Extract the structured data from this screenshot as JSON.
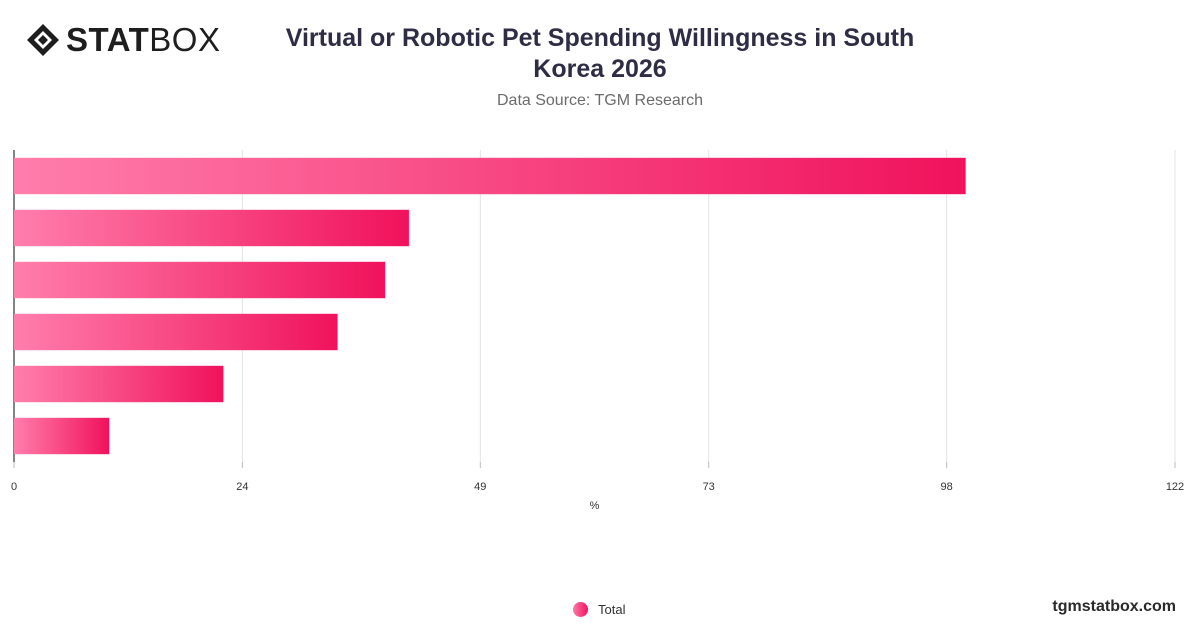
{
  "brand": {
    "logo_bold": "STAT",
    "logo_regular": "BOX",
    "site": "tgmstatbox.com"
  },
  "header": {
    "title": "Virtual or Robotic Pet Spending Willingness in South Korea 2026",
    "subtitle": "Data Source: TGM Research"
  },
  "chart_data": {
    "type": "bar",
    "orientation": "horizontal",
    "xlabel": "%",
    "xlim": [
      0,
      122
    ],
    "ticks": [
      0,
      24,
      49,
      73,
      98,
      122
    ],
    "grid": true,
    "legend_position": "bottom-center",
    "series": [
      {
        "name": "Total",
        "values": [
          100,
          41.5,
          39,
          34,
          22,
          10
        ]
      }
    ],
    "colors": {
      "bar_start": "#ff7eab",
      "bar_end": "#f0125c",
      "grid": "#e3e3e3",
      "axis": "#333333",
      "tick_label": "#333333"
    }
  }
}
